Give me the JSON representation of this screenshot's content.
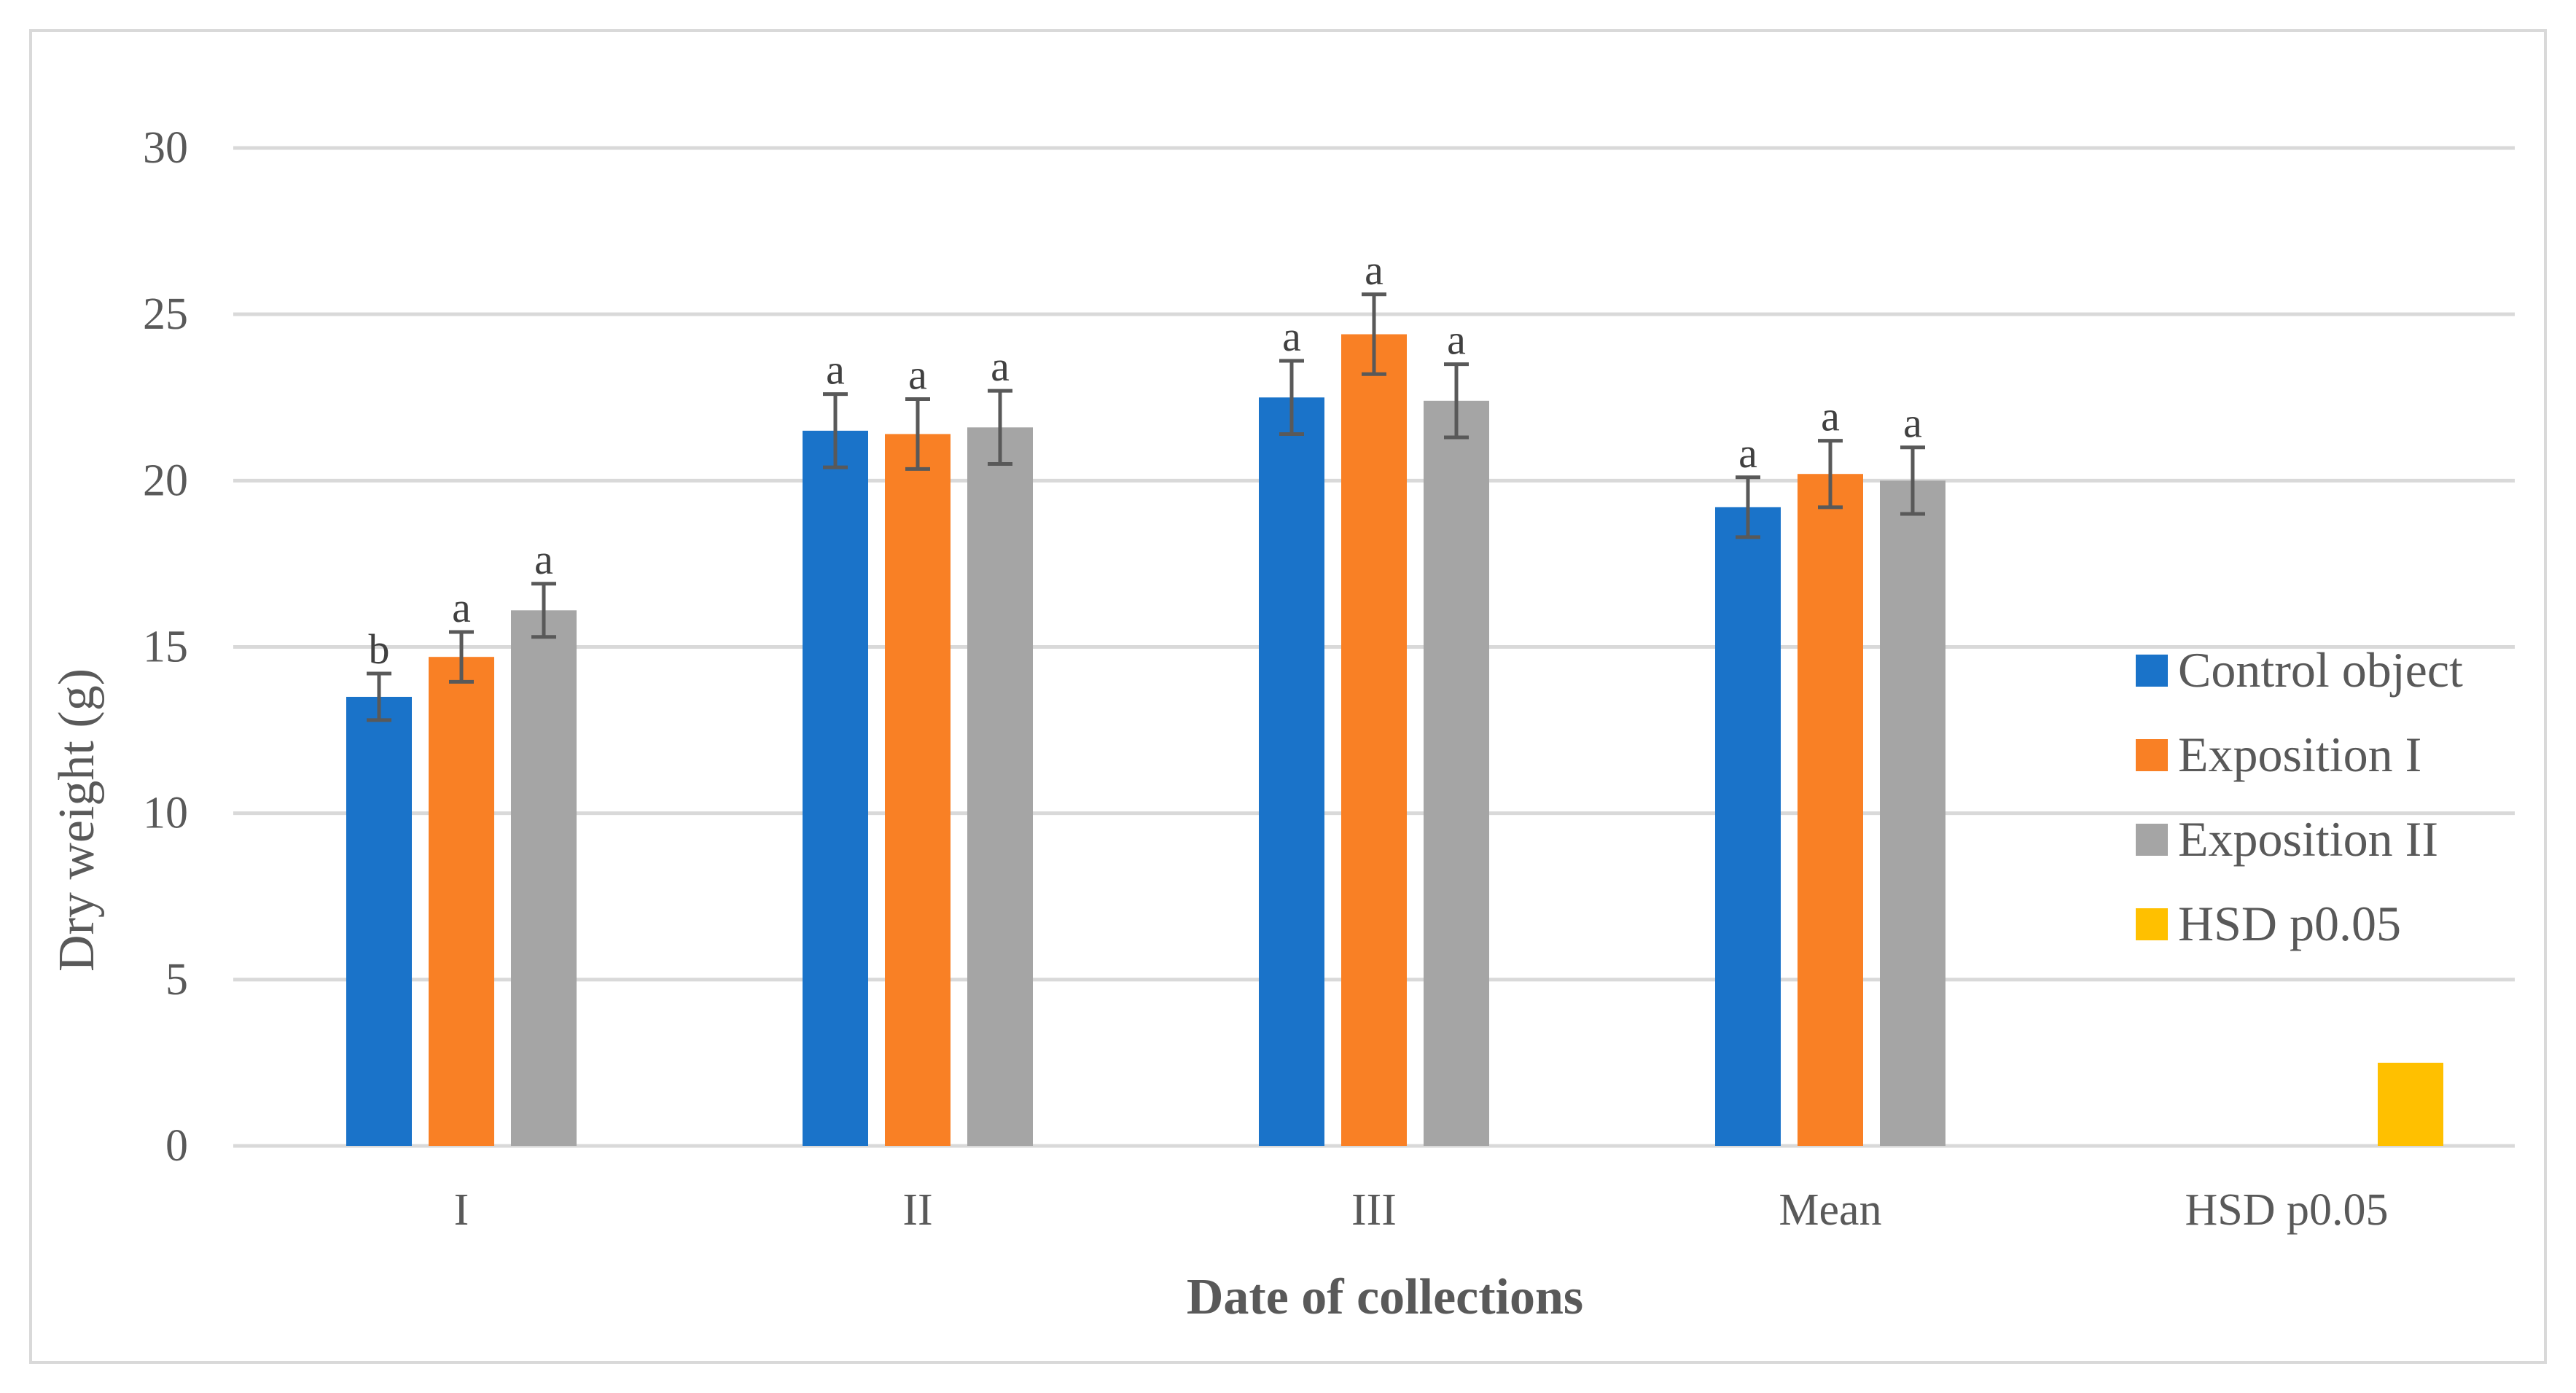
{
  "chart_data": {
    "type": "bar",
    "title": "",
    "xlabel": "Date of collections",
    "ylabel": "Dry weight (g)",
    "ylim": [
      0,
      30
    ],
    "yticks": [
      0,
      5,
      10,
      15,
      20,
      25,
      30
    ],
    "grid": true,
    "legend_position": "right",
    "categories": [
      "I",
      "II",
      "III",
      "Mean",
      "HSD p0.05"
    ],
    "series": [
      {
        "name": "Control object",
        "color": "#1a73c9",
        "values": [
          13.5,
          21.5,
          22.5,
          19.2,
          null
        ],
        "errors": [
          0.7,
          1.1,
          1.1,
          0.9,
          null
        ],
        "labels": [
          "b",
          "a",
          "a",
          "a",
          ""
        ]
      },
      {
        "name": "Exposition I",
        "color": "#f98025",
        "values": [
          14.7,
          21.4,
          24.4,
          20.2,
          null
        ],
        "errors": [
          0.75,
          1.05,
          1.2,
          1.0,
          null
        ],
        "labels": [
          "a",
          "a",
          "a",
          "a",
          ""
        ]
      },
      {
        "name": "Exposition II",
        "color": "#a5a5a5",
        "values": [
          16.1,
          21.6,
          22.4,
          20.0,
          null
        ],
        "errors": [
          0.8,
          1.1,
          1.1,
          1.0,
          null
        ],
        "labels": [
          "a",
          "a",
          "a",
          "a",
          ""
        ]
      },
      {
        "name": "HSD p0.05",
        "color": "#ffc000",
        "values": [
          null,
          null,
          null,
          null,
          2.5
        ],
        "errors": [
          null,
          null,
          null,
          null,
          null
        ],
        "labels": [
          "",
          "",
          "",
          "",
          ""
        ]
      }
    ]
  }
}
